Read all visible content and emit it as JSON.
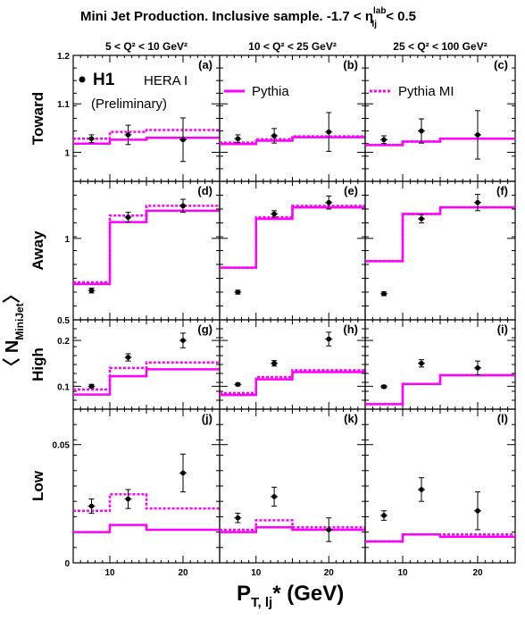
{
  "figure": {
    "title": "Mini Jet Production.  Inclusive sample.  -1.7  < η",
    "title_sup": "lab",
    "title_sub": "lj",
    "title_tail": " < 0.5",
    "y_axis_label": "〈 N",
    "y_axis_label_sub": "MiniJet",
    "y_axis_label_tail": "〉",
    "x_axis_label": "P",
    "x_axis_label_sub": "T, lj",
    "x_axis_label_tail": "* (GeV)"
  },
  "legend": {
    "experiment": "H1",
    "dataset": "HERA I",
    "status": "(Preliminary)",
    "pythia": "Pythia",
    "pythia_mi": "Pythia MI"
  },
  "colors": {
    "pythia": "#ff00ff",
    "data": "#000000",
    "frame": "#000000"
  },
  "chart_data": {
    "type": "line",
    "x_bin_edges": [
      5,
      10,
      15,
      25
    ],
    "x_centers": [
      7.5,
      12.5,
      20
    ],
    "xlim": [
      5,
      25
    ],
    "x_ticks": [
      10,
      20
    ],
    "columns": [
      {
        "q2_label": "5 < Q² < 10 GeV²"
      },
      {
        "q2_label": "10 < Q² < 25 GeV²"
      },
      {
        "q2_label": "25 < Q² < 100 GeV²"
      }
    ],
    "rows": [
      {
        "label": "Toward",
        "ylim": [
          0.94,
          1.2
        ],
        "y_ticks": [
          1,
          1.1,
          1.2
        ],
        "y_tick_labels": [
          "1",
          "1.1",
          "1.2"
        ],
        "panels": [
          {
            "tag": "(a)",
            "data": {
              "y": [
                1.028,
                1.036,
                1.026
              ],
              "err": [
                0.008,
                0.02,
                0.045
              ]
            },
            "pythia": [
              1.018,
              1.026,
              1.03
            ],
            "pythia_mi": [
              1.028,
              1.042,
              1.046
            ]
          },
          {
            "tag": "(b)",
            "data": {
              "y": [
                1.028,
                1.034,
                1.042
              ],
              "err": [
                0.008,
                0.015,
                0.04
              ]
            },
            "pythia": [
              1.017,
              1.024,
              1.031
            ],
            "pythia_mi": [
              1.02,
              1.027,
              1.033
            ]
          },
          {
            "tag": "(c)",
            "data": {
              "y": [
                1.026,
                1.044,
                1.036
              ],
              "err": [
                0.008,
                0.025,
                0.05
              ]
            },
            "pythia": [
              1.015,
              1.022,
              1.028
            ],
            "pythia_mi": [
              1.015,
              1.022,
              1.028
            ]
          }
        ]
      },
      {
        "label": "Away",
        "ylim": [
          0.5,
          1.35
        ],
        "y_ticks": [
          0.5,
          1
        ],
        "y_tick_labels": [
          "0.5",
          "1"
        ],
        "panels": [
          {
            "tag": "(d)",
            "data": {
              "y": [
                0.68,
                1.13,
                1.2
              ],
              "err": [
                0.015,
                0.03,
                0.04
              ]
            },
            "pythia": [
              0.72,
              1.1,
              1.17
            ],
            "pythia_mi": [
              0.73,
              1.14,
              1.2
            ]
          },
          {
            "tag": "(e)",
            "data": {
              "y": [
                0.67,
                1.15,
                1.22
              ],
              "err": [
                0.012,
                0.02,
                0.04
              ]
            },
            "pythia": [
              0.82,
              1.12,
              1.19
            ],
            "pythia_mi": [
              0.82,
              1.13,
              1.2
            ]
          },
          {
            "tag": "(f)",
            "data": {
              "y": [
                0.66,
                1.12,
                1.22
              ],
              "err": [
                0.012,
                0.025,
                0.05
              ]
            },
            "pythia": [
              0.86,
              1.15,
              1.19
            ],
            "pythia_mi": [
              0.86,
              1.15,
              1.19
            ]
          }
        ]
      },
      {
        "label": "High",
        "ylim": [
          0.05,
          0.245
        ],
        "y_ticks": [
          0.1,
          0.2
        ],
        "y_tick_labels": [
          "0.1",
          "0.2"
        ],
        "panels": [
          {
            "tag": "(g)",
            "data": {
              "y": [
                0.1,
                0.163,
                0.2
              ],
              "err": [
                0.004,
                0.008,
                0.016
              ]
            },
            "pythia": [
              0.082,
              0.122,
              0.137
            ],
            "pythia_mi": [
              0.093,
              0.14,
              0.152
            ]
          },
          {
            "tag": "(h)",
            "data": {
              "y": [
                0.104,
                0.15,
                0.203
              ],
              "err": [
                0.003,
                0.006,
                0.015
              ]
            },
            "pythia": [
              0.081,
              0.115,
              0.131
            ],
            "pythia_mi": [
              0.085,
              0.12,
              0.135
            ]
          },
          {
            "tag": "(i)",
            "data": {
              "y": [
                0.099,
                0.15,
                0.14
              ],
              "err": [
                0.003,
                0.008,
                0.015
              ]
            },
            "pythia": [
              0.061,
              0.105,
              0.124
            ],
            "pythia_mi": [
              0.061,
              0.105,
              0.124
            ]
          }
        ]
      },
      {
        "label": "Low",
        "ylim": [
          0,
          0.065
        ],
        "y_ticks": [
          0,
          0.05
        ],
        "y_tick_labels": [
          "0",
          "0.05"
        ],
        "panels": [
          {
            "tag": "(j)",
            "data": {
              "y": [
                0.024,
                0.027,
                0.038
              ],
              "err": [
                0.003,
                0.004,
                0.008
              ]
            },
            "pythia": [
              0.013,
              0.016,
              0.014
            ],
            "pythia_mi": [
              0.022,
              0.029,
              0.023
            ]
          },
          {
            "tag": "(k)",
            "data": {
              "y": [
                0.019,
                0.028,
                0.014
              ],
              "err": [
                0.002,
                0.004,
                0.005
              ]
            },
            "pythia": [
              0.013,
              0.015,
              0.014
            ],
            "pythia_mi": [
              0.014,
              0.018,
              0.015
            ]
          },
          {
            "tag": "(l)",
            "data": {
              "y": [
                0.02,
                0.031,
                0.022
              ],
              "err": [
                0.002,
                0.005,
                0.008
              ]
            },
            "pythia": [
              0.009,
              0.012,
              0.011
            ],
            "pythia_mi": [
              0.009,
              0.012,
              0.012
            ]
          }
        ]
      }
    ]
  }
}
